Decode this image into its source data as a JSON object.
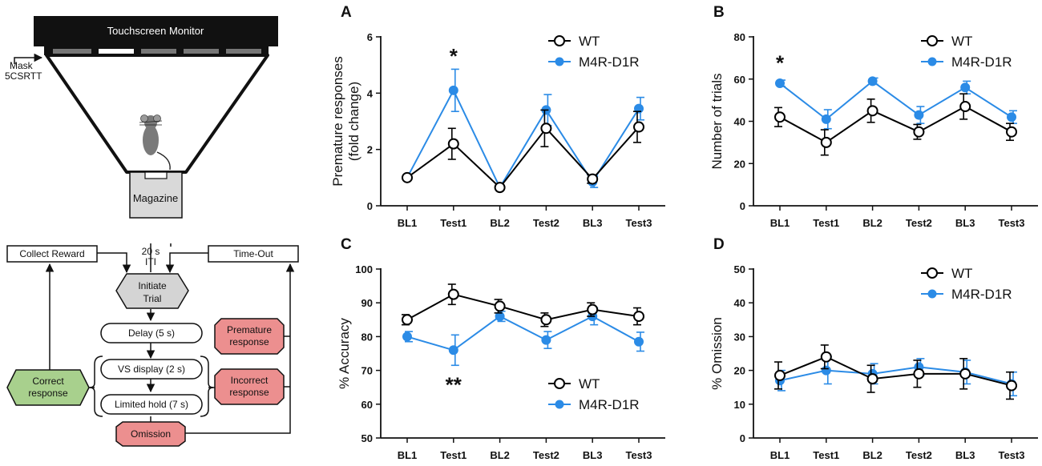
{
  "colors": {
    "wt": "#000000",
    "m4r": "#2b8be6",
    "monitor": "#111111",
    "magazine": "#d9d9d9",
    "initiate": "#d4d4d4",
    "premature_fill": "#ec8f8f",
    "correct_fill": "#a8d08d"
  },
  "apparatus": {
    "monitor_label": "Touchscreen Monitor",
    "mask_label_line1": "Mask",
    "mask_label_line2": "5CSRTT",
    "magazine_label": "Magazine"
  },
  "flowchart": {
    "collect_reward": "Collect Reward",
    "time_out": "Time-Out",
    "iti_line1": "20 s",
    "iti_line2": "ITI",
    "initiate_line1": "Initiate",
    "initiate_line2": "Trial",
    "delay": "Delay (5 s)",
    "vs_display": "VS display (2 s)",
    "limited_hold": "Limited hold (7 s)",
    "premature_line1": "Premature",
    "premature_line2": "response",
    "incorrect_line1": "Incorrect",
    "incorrect_line2": "response",
    "correct_line1": "Correct",
    "correct_line2": "response",
    "omission": "Omission"
  },
  "chart_data": [
    {
      "panel": "A",
      "type": "line",
      "categories": [
        "BL1",
        "Test1",
        "BL2",
        "Test2",
        "BL3",
        "Test3"
      ],
      "ylabel_line1": "Premature responses",
      "ylabel_line2": "(fold change)",
      "ylim": [
        0,
        6
      ],
      "yticks": [
        0,
        2,
        4,
        6
      ],
      "yticklabels": [
        "0",
        "2",
        "4",
        "6"
      ],
      "legend": [
        "WT",
        "M4R-D1R"
      ],
      "legend_position": "top-right",
      "annotations": [
        {
          "text": "*",
          "category": "Test1",
          "y": 5.35
        }
      ],
      "series": [
        {
          "name": "WT",
          "values": [
            1.0,
            2.2,
            0.65,
            2.75,
            0.95,
            2.8
          ],
          "err": [
            0.0,
            0.55,
            0.0,
            0.65,
            0.15,
            0.55
          ]
        },
        {
          "name": "M4R-D1R",
          "values": [
            1.0,
            4.1,
            0.65,
            3.4,
            0.85,
            3.45
          ],
          "err": [
            0.0,
            0.75,
            0.0,
            0.55,
            0.2,
            0.4
          ]
        }
      ]
    },
    {
      "panel": "B",
      "type": "line",
      "categories": [
        "BL1",
        "Test1",
        "BL2",
        "Test2",
        "BL3",
        "Test3"
      ],
      "ylabel_line1": "Number of trials",
      "ylim": [
        0,
        80
      ],
      "yticks": [
        0,
        20,
        40,
        60,
        80
      ],
      "yticklabels": [
        "0",
        "20",
        "40",
        "60",
        "80"
      ],
      "legend": [
        "WT",
        "M4R-D1R"
      ],
      "legend_position": "top-right",
      "annotations": [
        {
          "text": "*",
          "category": "BL1",
          "y": 68
        }
      ],
      "series": [
        {
          "name": "WT",
          "values": [
            42,
            30,
            45,
            35,
            47,
            35
          ],
          "err": [
            4.5,
            6,
            5.5,
            3.5,
            6,
            4
          ]
        },
        {
          "name": "M4R-D1R",
          "values": [
            58,
            41,
            59,
            43,
            56,
            42
          ],
          "err": [
            1.5,
            4.5,
            1.5,
            4,
            3,
            3
          ]
        }
      ]
    },
    {
      "panel": "C",
      "type": "line",
      "categories": [
        "BL1",
        "Test1",
        "BL2",
        "Test2",
        "BL3",
        "Test3"
      ],
      "ylabel_line1": "% Accuracy",
      "ylim": [
        50,
        100
      ],
      "yticks": [
        50,
        60,
        70,
        80,
        90,
        100
      ],
      "yticklabels": [
        "50",
        "60",
        "70",
        "80",
        "90",
        "100"
      ],
      "legend": [
        "WT",
        "M4R-D1R"
      ],
      "legend_position": "bottom-right",
      "annotations": [
        {
          "text": "**",
          "category": "Test1",
          "y": 66
        }
      ],
      "series": [
        {
          "name": "WT",
          "values": [
            85,
            92.5,
            89,
            85,
            88,
            86
          ],
          "err": [
            1.5,
            3,
            2,
            2,
            2,
            2.5
          ]
        },
        {
          "name": "M4R-D1R",
          "values": [
            80,
            76,
            86,
            79,
            86,
            78.5
          ],
          "err": [
            1.5,
            4.5,
            1.5,
            2.5,
            2.5,
            2.8
          ]
        }
      ]
    },
    {
      "panel": "D",
      "type": "line",
      "categories": [
        "BL1",
        "Test1",
        "BL2",
        "Test2",
        "BL3",
        "Test3"
      ],
      "ylabel_line1": "% Omission",
      "ylim": [
        0,
        50
      ],
      "yticks": [
        0,
        10,
        20,
        30,
        40,
        50
      ],
      "yticklabels": [
        "0",
        "10",
        "20",
        "30",
        "40",
        "50"
      ],
      "legend": [
        "WT",
        "M4R-D1R"
      ],
      "legend_position": "top-right",
      "annotations": [],
      "series": [
        {
          "name": "WT",
          "values": [
            18.5,
            24,
            17.5,
            19,
            19,
            15.5
          ],
          "err": [
            4,
            3.5,
            4,
            4,
            4.5,
            4
          ]
        },
        {
          "name": "M4R-D1R",
          "values": [
            17,
            20,
            19,
            21,
            19.5,
            16
          ],
          "err": [
            3,
            4,
            3,
            2.5,
            3.5,
            3.5
          ]
        }
      ]
    }
  ]
}
